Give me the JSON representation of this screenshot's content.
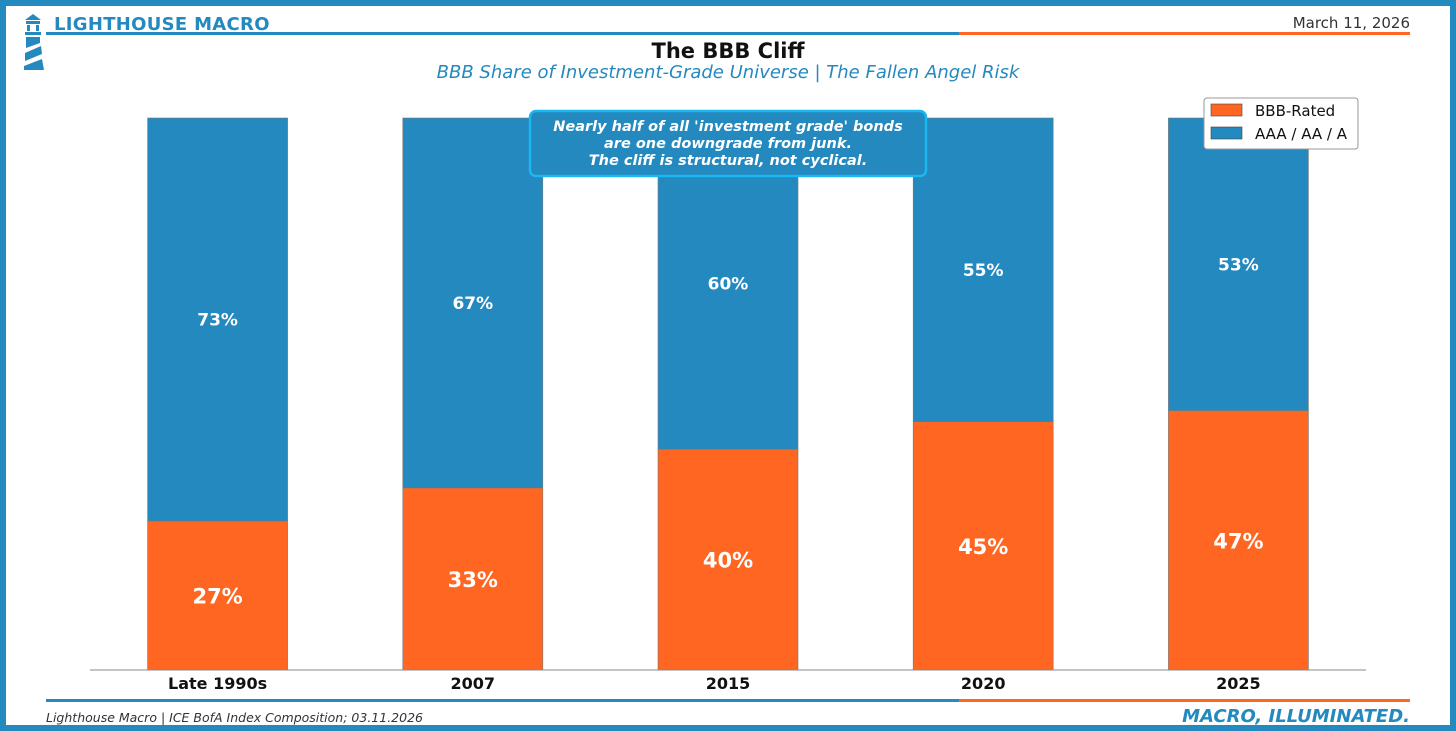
{
  "header": {
    "brand": "LIGHTHOUSE MACRO",
    "date": "March 11, 2026",
    "title": "The BBB Cliff",
    "subtitle": "BBB Share of Investment-Grade Universe | The Fallen Angel Risk"
  },
  "footer": {
    "source": "Lighthouse Macro | ICE BofA Index Composition; 03.11.2026",
    "tagline": "MACRO, ILLUMINATED."
  },
  "colors": {
    "brand_blue": "#2389bf",
    "accent_orange": "#ff6622",
    "callout_border": "#19b8f0"
  },
  "chart_data": {
    "type": "bar",
    "stacked": true,
    "categories": [
      "Late 1990s",
      "2007",
      "2015",
      "2020",
      "2025"
    ],
    "series": [
      {
        "name": "BBB-Rated",
        "values": [
          27,
          33,
          40,
          45,
          47
        ],
        "color": "#ff6622"
      },
      {
        "name": "AAA / AA / A",
        "values": [
          73,
          67,
          60,
          55,
          53
        ],
        "color": "#2389bf"
      }
    ],
    "ylim": [
      0,
      100
    ],
    "value_suffix": "%",
    "legend_position": "top-right",
    "grid": false,
    "annotation": [
      "Nearly half of all 'investment grade' bonds",
      "are one downgrade from junk.",
      "The cliff is structural, not cyclical."
    ]
  }
}
